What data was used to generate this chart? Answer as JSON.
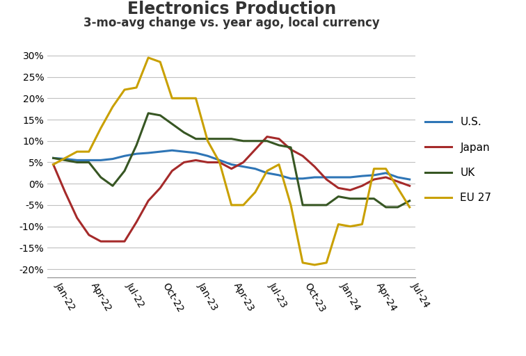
{
  "title": "Electronics Production",
  "subtitle": "3-mo-avg change vs. year ago, local currency",
  "x_labels": [
    "Jan-22",
    "Apr-22",
    "Jul-22",
    "Oct-22",
    "Jan-23",
    "Apr-23",
    "Jul-23",
    "Oct-23",
    "Jan-24",
    "Apr-24",
    "Jul-24"
  ],
  "us_x": [
    0,
    1,
    2,
    3,
    4,
    5,
    6,
    7,
    8,
    9,
    10,
    11,
    12,
    13,
    14,
    15,
    16,
    17,
    18,
    19,
    20,
    21,
    22,
    23,
    24,
    25,
    26,
    27,
    28,
    29,
    30
  ],
  "us_y": [
    6.0,
    5.8,
    5.5,
    5.5,
    5.5,
    5.8,
    6.5,
    7.0,
    7.2,
    7.5,
    7.8,
    7.5,
    7.2,
    6.5,
    5.5,
    4.5,
    4.0,
    3.5,
    2.5,
    2.0,
    1.2,
    1.2,
    1.5,
    1.5,
    1.5,
    1.5,
    1.8,
    2.0,
    2.5,
    1.5,
    1.0
  ],
  "japan_x": [
    0,
    1,
    2,
    3,
    4,
    5,
    6,
    7,
    8,
    9,
    10,
    11,
    12,
    13,
    14,
    15,
    16,
    17,
    18,
    19,
    20,
    21,
    22,
    23,
    24,
    25,
    26,
    27,
    28,
    29,
    30
  ],
  "japan_y": [
    4.5,
    -2.0,
    -8.0,
    -12.0,
    -13.5,
    -13.5,
    -13.5,
    -9.0,
    -4.0,
    -1.0,
    3.0,
    5.0,
    5.5,
    5.0,
    5.0,
    3.5,
    5.0,
    8.0,
    11.0,
    10.5,
    8.0,
    6.5,
    4.0,
    1.0,
    -1.0,
    -1.5,
    -0.5,
    1.0,
    1.5,
    0.5,
    -0.5
  ],
  "uk_x": [
    0,
    1,
    2,
    3,
    4,
    5,
    6,
    7,
    8,
    9,
    10,
    11,
    12,
    13,
    14,
    15,
    16,
    17,
    18,
    19,
    20,
    21,
    22,
    23,
    24,
    25,
    26,
    27,
    28,
    29,
    30
  ],
  "uk_y": [
    6.0,
    5.5,
    5.0,
    5.0,
    1.5,
    -0.5,
    3.0,
    9.0,
    16.5,
    16.0,
    14.0,
    12.0,
    10.5,
    10.5,
    10.5,
    10.5,
    10.0,
    10.0,
    10.0,
    9.0,
    8.5,
    -5.0,
    -5.0,
    -5.0,
    -3.0,
    -3.5,
    -3.5,
    -3.5,
    -5.5,
    -5.5,
    -4.0
  ],
  "eu27_x": [
    0,
    1,
    2,
    3,
    4,
    5,
    6,
    7,
    8,
    9,
    10,
    11,
    12,
    13,
    14,
    15,
    16,
    17,
    18,
    19,
    20,
    21,
    22,
    23,
    24,
    25,
    26,
    27,
    28,
    29,
    30
  ],
  "eu27_y": [
    4.5,
    6.0,
    7.5,
    7.5,
    13.0,
    18.0,
    22.0,
    22.5,
    29.5,
    28.5,
    20.0,
    20.0,
    20.0,
    10.0,
    5.0,
    -5.0,
    -5.0,
    -2.0,
    3.0,
    4.5,
    -5.0,
    -18.5,
    -19.0,
    -18.5,
    -9.5,
    -10.0,
    -9.5,
    3.5,
    3.5,
    -1.0,
    -5.5
  ],
  "colors": {
    "us": "#2E75B6",
    "japan": "#A52A2A",
    "uk": "#375623",
    "eu27": "#C9A000"
  },
  "tick_positions": [
    0,
    3,
    6,
    9,
    12,
    15,
    18,
    21,
    24,
    27,
    30
  ],
  "ylim": [
    -22,
    33
  ],
  "yticks": [
    -20,
    -15,
    -10,
    -5,
    0,
    5,
    10,
    15,
    20,
    25,
    30
  ],
  "background_color": "#FFFFFF",
  "grid_color": "#C0C0C0",
  "title_fontsize": 17,
  "subtitle_fontsize": 12,
  "tick_fontsize": 10
}
